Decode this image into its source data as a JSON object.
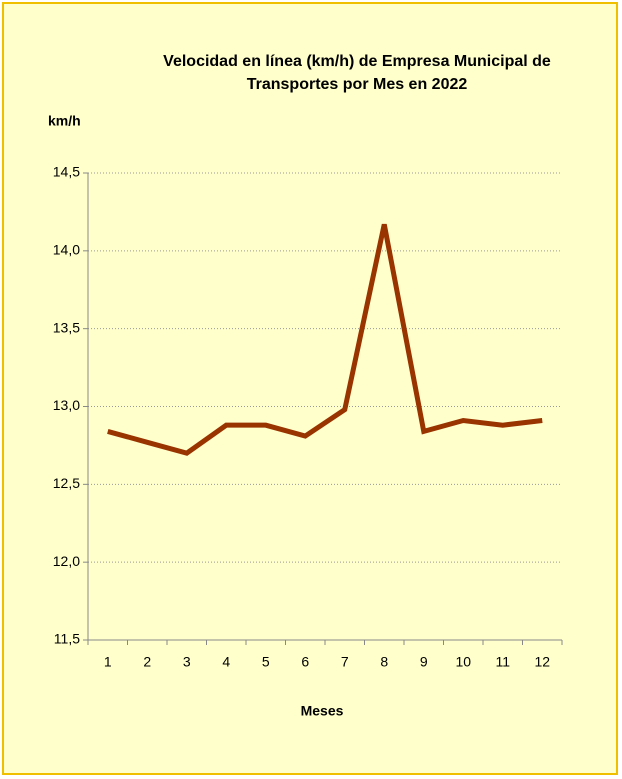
{
  "chart_data": {
    "type": "line",
    "title": [
      "Velocidad en línea (km/h) de Empresa Municipal de",
      "Transportes por Mes en 2022"
    ],
    "y_label": "km/h",
    "x_label": "Meses",
    "categories": [
      "1",
      "2",
      "3",
      "4",
      "5",
      "6",
      "7",
      "8",
      "9",
      "10",
      "11",
      "12"
    ],
    "series": [
      {
        "color": "#993300",
        "values": [
          12.84,
          12.77,
          12.7,
          12.88,
          12.88,
          12.81,
          12.98,
          14.17,
          12.84,
          12.91,
          12.88,
          12.91
        ]
      }
    ],
    "ylim": [
      11.5,
      14.5
    ],
    "yticks": [
      {
        "value": 11.5,
        "label": "11,5"
      },
      {
        "value": 12,
        "label": "12,0"
      },
      {
        "value": 12.5,
        "label": "12,5"
      },
      {
        "value": 13,
        "label": "13,0"
      },
      {
        "value": 13.5,
        "label": "13,5"
      },
      {
        "value": 14,
        "label": "14,0"
      },
      {
        "value": 14.5,
        "label": "14,5"
      }
    ],
    "grid": true
  }
}
